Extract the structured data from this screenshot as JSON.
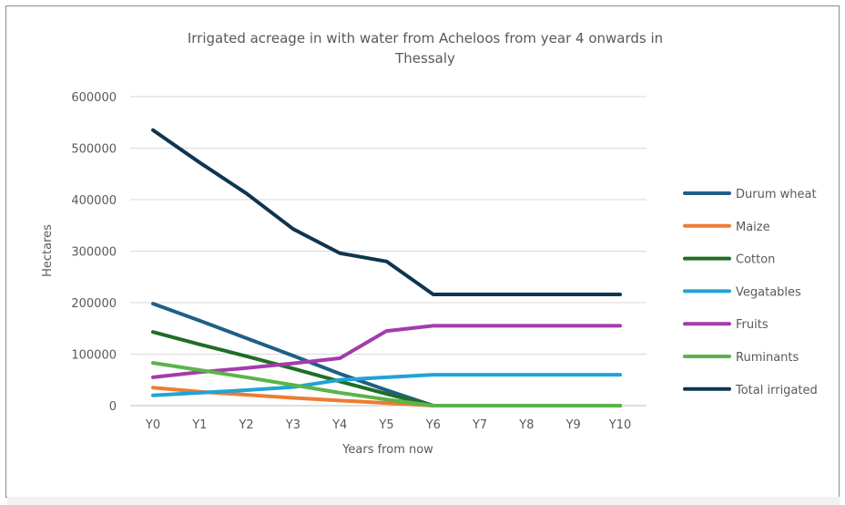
{
  "chart_data": {
    "type": "line",
    "title": "Irrigated acreage in with water from Acheloos from year 4 onwards in",
    "title_line2": "Thessaly",
    "xlabel": "Years from now",
    "ylabel": "Hectares",
    "ylim": [
      0,
      600000
    ],
    "yticks": [
      "0",
      "100000",
      "200000",
      "300000",
      "400000",
      "500000",
      "600000"
    ],
    "grid": true,
    "legend_position": "right",
    "categories": [
      "Y0",
      "Y1",
      "Y2",
      "Y3",
      "Y4",
      "Y5",
      "Y6",
      "Y7",
      "Y8",
      "Y9",
      "Y10"
    ],
    "series": [
      {
        "name": "Durum wheat",
        "color": "#1f5f86",
        "values": [
          198000,
          165000,
          131000,
          97000,
          62000,
          30000,
          0,
          0,
          0,
          0,
          0
        ]
      },
      {
        "name": "Maize",
        "color": "#ec7d31",
        "values": [
          35000,
          27000,
          21000,
          15000,
          10000,
          5000,
          0,
          0,
          0,
          0,
          0
        ]
      },
      {
        "name": "Cotton",
        "color": "#1e6e26",
        "values": [
          143000,
          119000,
          96000,
          72000,
          47000,
          23000,
          0,
          0,
          0,
          0,
          0
        ]
      },
      {
        "name": "Vegatables",
        "color": "#21a3d6",
        "values": [
          20000,
          25000,
          30000,
          36000,
          50000,
          55000,
          60000,
          60000,
          60000,
          60000,
          60000
        ]
      },
      {
        "name": "Fruits",
        "color": "#a33cac",
        "values": [
          55000,
          65000,
          73000,
          82000,
          92000,
          145000,
          155000,
          155000,
          155000,
          155000,
          155000
        ]
      },
      {
        "name": "Ruminants",
        "color": "#5cb34a",
        "values": [
          83000,
          69000,
          55000,
          40000,
          25000,
          12000,
          0,
          0,
          0,
          0,
          0
        ]
      },
      {
        "name": "Total irrigated",
        "color": "#0f3550",
        "values": [
          535000,
          472000,
          412000,
          343000,
          296000,
          280000,
          216000,
          216000,
          216000,
          216000,
          216000
        ]
      }
    ]
  }
}
